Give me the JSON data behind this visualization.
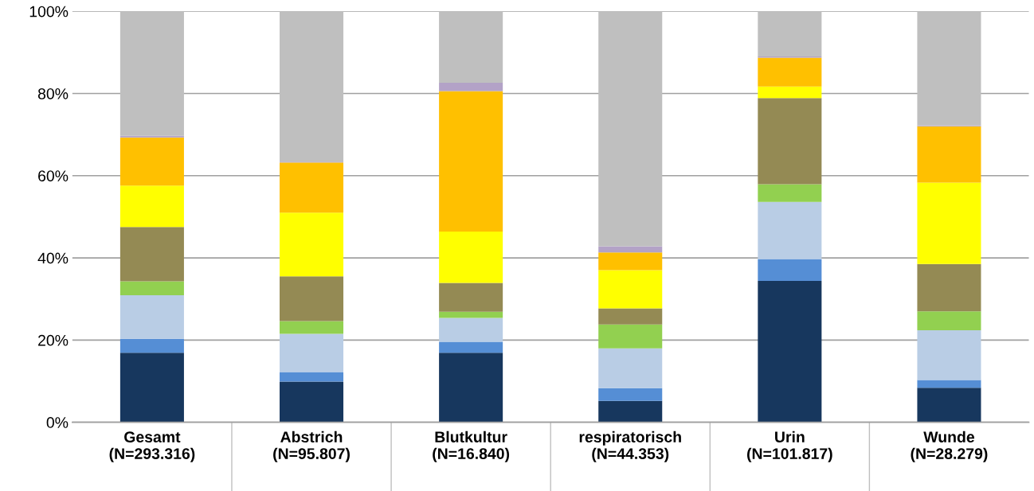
{
  "chart_data": {
    "type": "bar",
    "stacked": true,
    "categories": [
      "Gesamt\n(N=293.316)",
      "Abstrich\n(N=95.807)",
      "Blutkultur\n(N=16.840)",
      "respiratorisch\n(N=44.353)",
      "Urin\n(N=101.817)",
      "Wunde\n(N=28.279)"
    ],
    "series": [
      {
        "color": "#17375e",
        "values": [
          16.9,
          9.9,
          16.9,
          5.2,
          34.4,
          8.4
        ]
      },
      {
        "color": "#558ed5",
        "values": [
          3.4,
          2.3,
          2.7,
          3.1,
          5.3,
          1.9
        ]
      },
      {
        "color": "#b9cde5",
        "values": [
          10.6,
          9.3,
          5.8,
          9.7,
          13.9,
          12.1
        ]
      },
      {
        "color": "#92d050",
        "values": [
          3.4,
          3.1,
          1.5,
          5.8,
          4.3,
          4.6
        ]
      },
      {
        "color": "#948a54",
        "values": [
          13.2,
          10.9,
          7.0,
          3.9,
          21.0,
          11.5
        ]
      },
      {
        "color": "#ffff00",
        "values": [
          10.1,
          15.5,
          12.5,
          9.3,
          2.8,
          19.8
        ]
      },
      {
        "color": "#ffc000",
        "values": [
          11.7,
          12.2,
          34.2,
          4.3,
          7.0,
          13.7
        ]
      },
      {
        "color": "#b3a2c7",
        "values": [
          0.4,
          0.2,
          2.0,
          1.5,
          0.3,
          0.2
        ]
      },
      {
        "color": "#bfbfbf",
        "values": [
          30.3,
          36.6,
          17.4,
          57.2,
          11.0,
          27.8
        ]
      }
    ],
    "ylim": [
      0,
      100
    ],
    "yticks": [
      {
        "value": 0,
        "label": "0%"
      },
      {
        "value": 20,
        "label": "20%"
      },
      {
        "value": 40,
        "label": "40%"
      },
      {
        "value": 60,
        "label": "60%"
      },
      {
        "value": 80,
        "label": "80%"
      },
      {
        "value": 100,
        "label": "100%"
      }
    ],
    "grid": "y",
    "legend": false
  }
}
